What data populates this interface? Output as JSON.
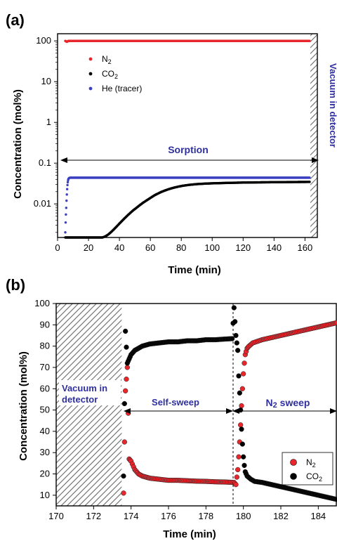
{
  "chart_data": [
    {
      "panel_label": "(a)",
      "type": "scatter",
      "xlabel": "Time (min)",
      "ylabel": "Concentration (mol%)",
      "xlim": [
        0,
        168
      ],
      "ylim": [
        0.0015,
        150
      ],
      "y_scale": "log",
      "x_ticks": [
        "0",
        "20",
        "40",
        "60",
        "80",
        "100",
        "120",
        "140",
        "160"
      ],
      "y_ticks": [
        "0.01",
        "0.1",
        "1",
        "10",
        "100"
      ],
      "legend_position": "top-left",
      "legend": [
        "N2",
        "CO2",
        "He (tracer)"
      ],
      "annotations": {
        "sorption": "Sorption",
        "vacuum": "Vacuum in detector"
      },
      "series": [
        {
          "name": "N2",
          "color": "#e8262c",
          "x": [
            5,
            6,
            7,
            10,
            20,
            40,
            60,
            80,
            100,
            120,
            140,
            160,
            163
          ],
          "y": [
            100,
            95,
            100,
            100,
            100,
            100,
            100,
            100,
            100,
            100,
            100,
            100,
            100
          ]
        },
        {
          "name": "CO2",
          "color": "#000000",
          "x": [
            5,
            10,
            20,
            29,
            31,
            33,
            35,
            37,
            39,
            41,
            43,
            45,
            47,
            49,
            51,
            53,
            55,
            57,
            59,
            61,
            63,
            65,
            67,
            69,
            71,
            73,
            75,
            78,
            81,
            85,
            90,
            95,
            100,
            110,
            120,
            130,
            140,
            150,
            160,
            163
          ],
          "y": [
            0.0015,
            0.0015,
            0.0015,
            0.0015,
            0.0016,
            0.0018,
            0.0021,
            0.0025,
            0.003,
            0.0036,
            0.0043,
            0.0051,
            0.006,
            0.007,
            0.008,
            0.0092,
            0.0105,
            0.0118,
            0.0132,
            0.0148,
            0.0165,
            0.018,
            0.0196,
            0.021,
            0.0224,
            0.0237,
            0.0249,
            0.0265,
            0.0279,
            0.0293,
            0.0306,
            0.0314,
            0.032,
            0.0328,
            0.0334,
            0.0338,
            0.0341,
            0.0344,
            0.0346,
            0.0347
          ]
        },
        {
          "name": "He (tracer)",
          "color": "#3b3fc0",
          "x": [
            5,
            5.2,
            5.4,
            5.6,
            5.8,
            6,
            6.2,
            6.4,
            6.6,
            6.8,
            7,
            7.5,
            8,
            10,
            20,
            40,
            60,
            80,
            100,
            120,
            140,
            160,
            163
          ],
          "y": [
            0.002,
            0.0035,
            0.0055,
            0.008,
            0.012,
            0.017,
            0.023,
            0.029,
            0.034,
            0.038,
            0.041,
            0.043,
            0.044,
            0.044,
            0.044,
            0.044,
            0.044,
            0.044,
            0.044,
            0.044,
            0.044,
            0.044,
            0.044
          ]
        }
      ]
    },
    {
      "panel_label": "(b)",
      "type": "scatter",
      "xlabel": "Time (min)",
      "ylabel": "Concentration (mol%)",
      "xlim": [
        170,
        185
      ],
      "ylim": [
        5,
        100
      ],
      "x_ticks": [
        "170",
        "172",
        "174",
        "176",
        "178",
        "180",
        "182",
        "184"
      ],
      "y_ticks": [
        "10",
        "20",
        "30",
        "40",
        "50",
        "60",
        "70",
        "80",
        "90",
        "100"
      ],
      "legend_position": "bottom-right",
      "legend": [
        "N2",
        "CO2"
      ],
      "annotations": {
        "vacuum": "Vacuum in detector",
        "self_sweep": "Self-sweep",
        "n2_sweep": "N2 sweep"
      },
      "series": [
        {
          "name": "N2",
          "color": "#e8262c",
          "x": [
            173.6,
            173.7,
            173.8,
            173.9,
            174,
            174.2,
            174.4,
            174.6,
            174.8,
            175,
            175.5,
            176,
            176.5,
            177,
            177.5,
            178,
            178.5,
            179,
            179.5,
            179.6,
            179.7,
            179.75,
            179.8,
            179.85,
            179.9,
            179.95,
            180,
            180.05,
            180.1,
            180.2,
            180.3,
            180.5,
            181,
            181.5,
            182,
            182.5,
            183,
            183.5,
            184,
            184.5,
            185
          ],
          "y": [
            11,
            59,
            70,
            27,
            26,
            22,
            20,
            19,
            18.5,
            18,
            17.5,
            17,
            17,
            16.8,
            16.6,
            16.5,
            16.3,
            16.2,
            16,
            15,
            22,
            28,
            35,
            43,
            52,
            60,
            67,
            72,
            76,
            79,
            80,
            81.5,
            83,
            84,
            85,
            86,
            87,
            88,
            89,
            90,
            91
          ]
        },
        {
          "name": "CO2",
          "color": "#000000",
          "x": [
            173.6,
            173.7,
            173.8,
            173.9,
            174,
            174.2,
            174.4,
            174.6,
            174.8,
            175,
            175.5,
            176,
            176.5,
            177,
            177.5,
            178,
            178.5,
            179,
            179.4,
            179.5,
            179.6,
            179.7,
            179.75,
            179.8,
            179.85,
            179.9,
            179.95,
            180,
            180.05,
            180.1,
            180.2,
            180.4,
            180.6,
            181,
            181.5,
            182,
            182.5,
            183,
            183.5,
            184,
            184.5,
            185
          ],
          "y": [
            19,
            87,
            72,
            74,
            76,
            78,
            79,
            80,
            80.5,
            81,
            81.5,
            82,
            82,
            82.5,
            82.5,
            83,
            83,
            83.3,
            83.5,
            98,
            85,
            78,
            66,
            58,
            50,
            41,
            34,
            28,
            24,
            21,
            19,
            17.5,
            16.5,
            16,
            15,
            14,
            13,
            12,
            11,
            10,
            9,
            8
          ]
        }
      ]
    }
  ]
}
